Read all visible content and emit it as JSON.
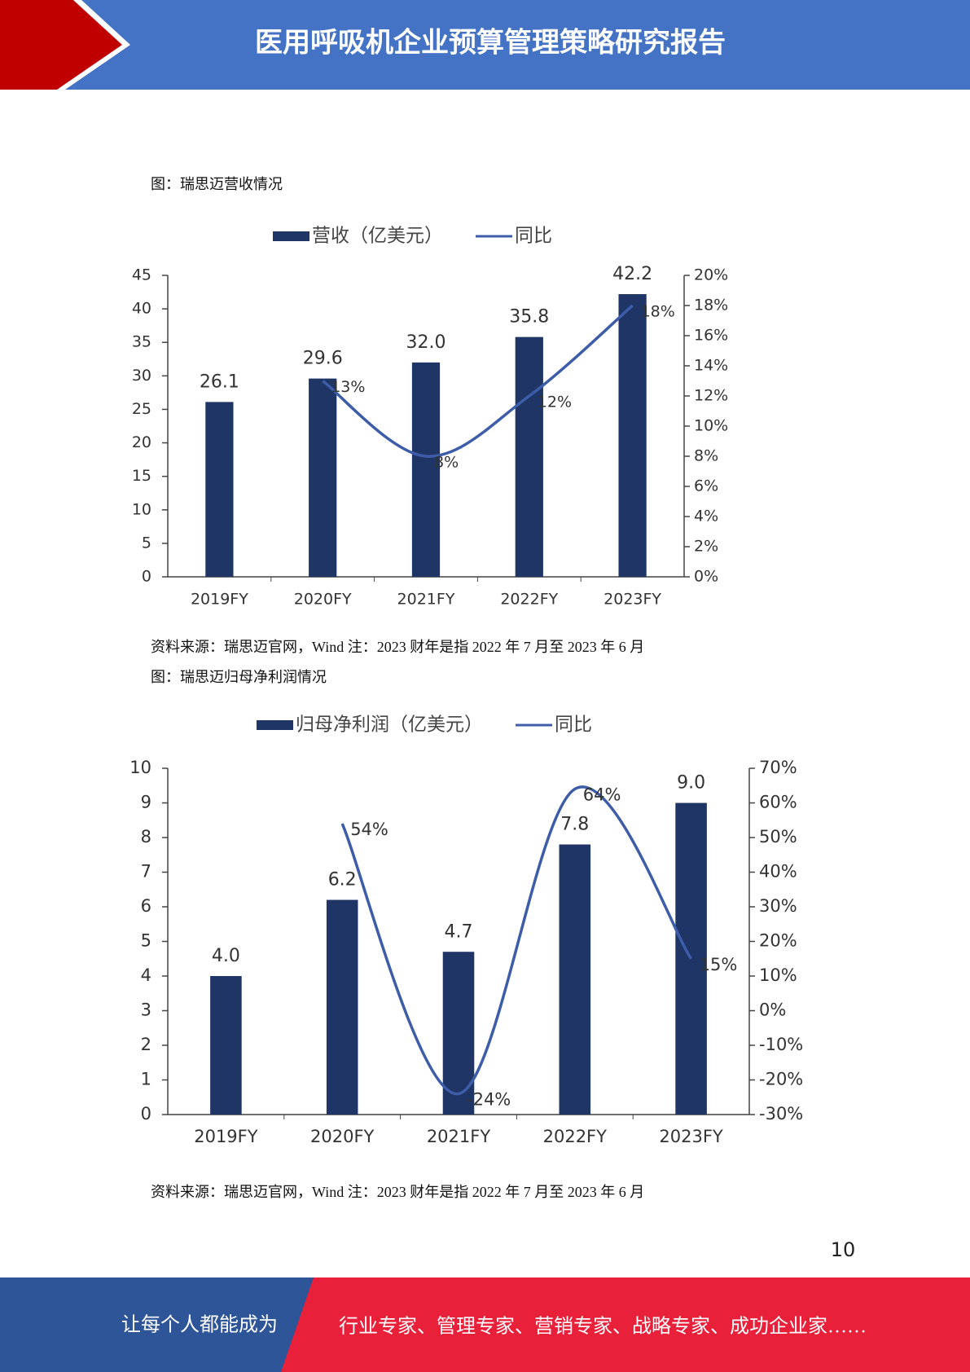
{
  "header": {
    "title": "医用呼吸机企业预算管理策略研究报告"
  },
  "chart_data": [
    {
      "type": "bar",
      "title": "图：瑞思迈营收情况",
      "categories": [
        "2019FY",
        "2020FY",
        "2021FY",
        "2022FY",
        "2023FY"
      ],
      "series": [
        {
          "name": "营收（亿美元）",
          "type": "bar",
          "color": "#1f3566",
          "values": [
            26.1,
            29.6,
            32.0,
            35.8,
            42.2
          ],
          "value_labels": [
            "26.1",
            "29.6",
            "32.0",
            "35.8",
            "42.2"
          ]
        },
        {
          "name": "同比",
          "type": "line",
          "axis": "y2",
          "color": "#3e5da8",
          "values": [
            null,
            13,
            8,
            12,
            18
          ],
          "value_labels": [
            null,
            "13%",
            "8%",
            "12%",
            "18%"
          ]
        }
      ],
      "ylim": [
        0,
        45
      ],
      "yticks": [
        0,
        5,
        10,
        15,
        20,
        25,
        30,
        35,
        40,
        45
      ],
      "y2lim": [
        0,
        20
      ],
      "y2ticks": [
        {
          "value": 0,
          "label": "0%"
        },
        {
          "value": 2,
          "label": "2%"
        },
        {
          "value": 4,
          "label": "4%"
        },
        {
          "value": 6,
          "label": "6%"
        },
        {
          "value": 8,
          "label": "8%"
        },
        {
          "value": 10,
          "label": "10%"
        },
        {
          "value": 12,
          "label": "12%"
        },
        {
          "value": 14,
          "label": "14%"
        },
        {
          "value": 16,
          "label": "16%"
        },
        {
          "value": 18,
          "label": "18%"
        },
        {
          "value": 20,
          "label": "20%"
        }
      ],
      "legend": "top",
      "grid": false,
      "source": "资料来源：瑞思迈官网，Wind 注：2023 财年是指 2022 年 7 月至 2023 年 6 月"
    },
    {
      "type": "bar",
      "title": "图：瑞思迈归母净利润情况",
      "categories": [
        "2019FY",
        "2020FY",
        "2021FY",
        "2022FY",
        "2023FY"
      ],
      "series": [
        {
          "name": "归母净利润（亿美元）",
          "type": "bar",
          "color": "#1f3566",
          "values": [
            4.0,
            6.2,
            4.7,
            7.8,
            9.0
          ],
          "value_labels": [
            "4.0",
            "6.2",
            "4.7",
            "7.8",
            "9.0"
          ]
        },
        {
          "name": "同比",
          "type": "line",
          "axis": "y2",
          "color": "#3e5da8",
          "values": [
            null,
            54,
            -24,
            64,
            15
          ],
          "value_labels": [
            null,
            "54%",
            "-24%",
            "64%",
            "15%"
          ]
        }
      ],
      "ylim": [
        0,
        10
      ],
      "yticks": [
        0,
        1,
        2,
        3,
        4,
        5,
        6,
        7,
        8,
        9,
        10
      ],
      "y2lim": [
        -30,
        70
      ],
      "y2ticks": [
        {
          "value": -30,
          "label": "-30%"
        },
        {
          "value": -20,
          "label": "-20%"
        },
        {
          "value": -10,
          "label": "-10%"
        },
        {
          "value": 0,
          "label": "0%"
        },
        {
          "value": 10,
          "label": "10%"
        },
        {
          "value": 20,
          "label": "20%"
        },
        {
          "value": 30,
          "label": "30%"
        },
        {
          "value": 40,
          "label": "40%"
        },
        {
          "value": 50,
          "label": "50%"
        },
        {
          "value": 60,
          "label": "60%"
        },
        {
          "value": 70,
          "label": "70%"
        }
      ],
      "legend": "top",
      "grid": false,
      "source": "资料来源：瑞思迈官网，Wind 注：2023 财年是指 2022 年 7 月至 2023 年 6 月"
    }
  ],
  "page_number": 10,
  "footer": {
    "left": "让每个人都能成为",
    "right": "行业专家、管理专家、营销专家、战略专家、成功企业家……"
  }
}
